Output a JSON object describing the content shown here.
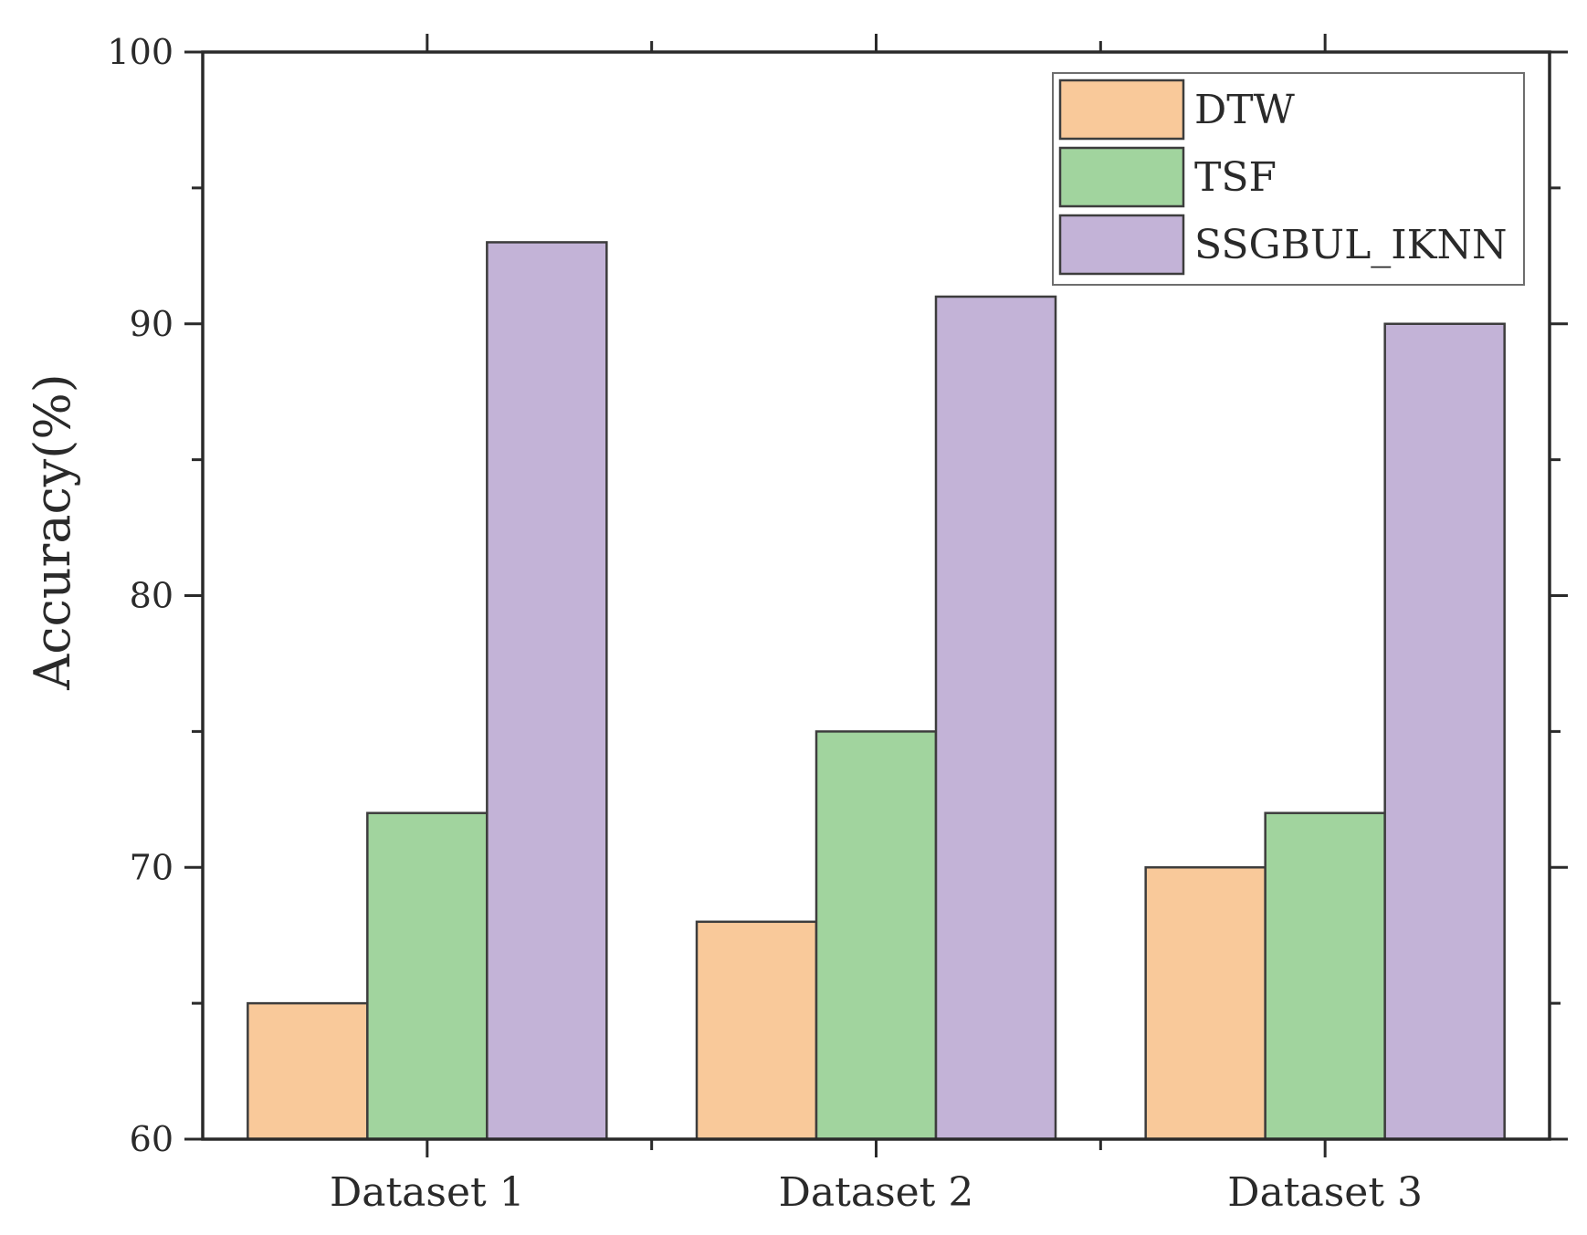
{
  "chart_data": {
    "type": "bar",
    "title": "",
    "xlabel": "",
    "ylabel": "Accuracy(%)",
    "ylim": [
      60,
      100
    ],
    "yticks": [
      60,
      70,
      80,
      90,
      100
    ],
    "grid": false,
    "legend_position": "top-right",
    "categories": [
      "Dataset 1",
      "Dataset 2",
      "Dataset 3"
    ],
    "series": [
      {
        "name": "DTW",
        "color": "#f9c99a",
        "values": [
          65,
          68,
          70
        ]
      },
      {
        "name": "TSF",
        "color": "#a1d49e",
        "values": [
          72,
          75,
          72
        ]
      },
      {
        "name": "SSGBUL_IKNN",
        "color": "#c3b3d7",
        "values": [
          93,
          91,
          90
        ]
      }
    ]
  }
}
